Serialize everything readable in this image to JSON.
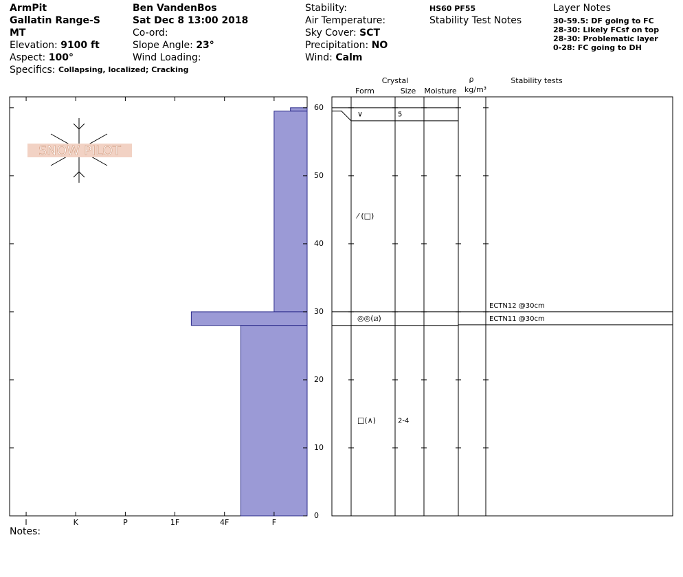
{
  "header": {
    "site": "ArmPit",
    "range": "Gallatin Range-S",
    "state": "MT",
    "elevation": {
      "label": "Elevation:",
      "value": "9100 ft"
    },
    "aspect": {
      "label": "Aspect:",
      "value": "100°"
    },
    "specifics": {
      "label": "Specifics:",
      "value": "Collapsing, localized; Cracking"
    },
    "observer": "Ben VandenBos",
    "date": "Sat Dec 8 13:00 2018",
    "coord": {
      "label": "Co-ord:"
    },
    "slope": {
      "label": "Slope Angle:",
      "value": "23°"
    },
    "wind_loading": {
      "label": "Wind Loading:"
    },
    "stability": {
      "label": "Stability:"
    },
    "air_temperature": {
      "label": "Air Temperature:"
    },
    "sky_cover": {
      "label": "Sky Cover:",
      "value": "SCT"
    },
    "precipitation": {
      "label": "Precipitation:",
      "value": "NO"
    },
    "wind": {
      "label": "Wind:",
      "value": "Calm"
    },
    "hs": "HS60  PF55",
    "stability_notes": "Stability Test Notes",
    "layer_notes_title": "Layer Notes",
    "layer_notes": [
      "30-59.5: DF going to FC",
      "28-30: Likely FCsf on top",
      "28-30: Problematic layer",
      "0-28: FC going to DH"
    ]
  },
  "logo": "SNOW PILOT",
  "chart_data": {
    "type": "hardness-profile",
    "color": "#9b9ad6",
    "xlim": [
      0.6667,
      6.6667
    ],
    "xticks": [
      {
        "value": 1,
        "label": "I"
      },
      {
        "value": 2,
        "label": "K"
      },
      {
        "value": 3,
        "label": "P"
      },
      {
        "value": 4,
        "label": "1F"
      },
      {
        "value": 5,
        "label": "4F"
      },
      {
        "value": 6,
        "label": "F"
      }
    ],
    "ylim": [
      0,
      61.6
    ],
    "yticks": [
      0,
      10,
      20,
      30,
      40,
      50,
      60
    ],
    "layers": [
      {
        "top": 60,
        "bottom": 59.5,
        "hardness": 6.33,
        "form": "∨",
        "size": "5"
      },
      {
        "top": 59.5,
        "bottom": 30,
        "hardness": 6,
        "form": "⁄ (□)"
      },
      {
        "top": 30,
        "bottom": 28,
        "hardness": 4.33,
        "form": "◎◎(⧄)"
      },
      {
        "top": 28,
        "bottom": 0,
        "hardness": 5.33,
        "form": "□(∧)",
        "size": "2-4"
      }
    ]
  },
  "table_headers": {
    "crystal": "Crystal",
    "form": "Form",
    "size": "Size",
    "moisture": "Moisture",
    "rho": "ρ",
    "density_unit": "kg/m³",
    "stability_tests": "Stability tests"
  },
  "tests": [
    {
      "label": "ECTN12 @30cm",
      "depth": 30
    },
    {
      "label": "ECTN11 @30cm",
      "depth": 30
    }
  ],
  "notes_label": "Notes:"
}
